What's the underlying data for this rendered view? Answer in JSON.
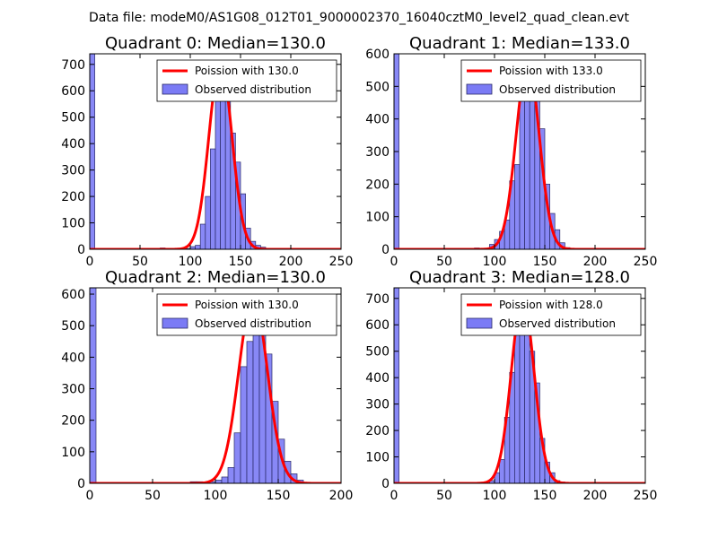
{
  "figure_title": "Data file: modeM0/AS1G08_012T01_9000002370_16040cztM0_level2_quad_clean.evt",
  "colors": {
    "bar_fill": "#7b7bf5",
    "bar_edge": "#2a2a66",
    "fit_line": "#ff0000",
    "axes": "#000000"
  },
  "chart_data": [
    {
      "type": "bar",
      "title": "Quadrant 0: Median=130.0",
      "xlim": [
        0,
        250
      ],
      "ylim": [
        0,
        740
      ],
      "xticks": [
        0,
        50,
        100,
        150,
        200,
        250
      ],
      "yticks": [
        0,
        100,
        200,
        300,
        400,
        500,
        600,
        700
      ],
      "bin_width": 5,
      "legend": [
        "Poission with 130.0",
        "Observed distribution"
      ],
      "bins": [
        0,
        5,
        10,
        15,
        20,
        25,
        30,
        35,
        40,
        45,
        50,
        55,
        60,
        65,
        70,
        75,
        80,
        85,
        90,
        95,
        100,
        105,
        110,
        115,
        120,
        125,
        130,
        135,
        140,
        145,
        150,
        155,
        160,
        165,
        170,
        175,
        180,
        185,
        190,
        195,
        200,
        205,
        210,
        215,
        220,
        225,
        230,
        235,
        240,
        245
      ],
      "counts": [
        740,
        0,
        0,
        0,
        0,
        0,
        0,
        0,
        0,
        0,
        0,
        0,
        0,
        0,
        5,
        0,
        0,
        0,
        0,
        3,
        10,
        15,
        95,
        200,
        380,
        580,
        570,
        640,
        440,
        330,
        210,
        80,
        30,
        15,
        8,
        3,
        0,
        0,
        0,
        3,
        0,
        0,
        0,
        0,
        0,
        0,
        0,
        0,
        0,
        0
      ],
      "poisson_lambda": 130.0,
      "poisson_peak": 710
    },
    {
      "type": "bar",
      "title": "Quadrant 1: Median=133.0",
      "xlim": [
        0,
        250
      ],
      "ylim": [
        0,
        600
      ],
      "xticks": [
        0,
        50,
        100,
        150,
        200,
        250
      ],
      "yticks": [
        0,
        100,
        200,
        300,
        400,
        500,
        600
      ],
      "bin_width": 5,
      "legend": [
        "Poission with 133.0",
        "Observed distribution"
      ],
      "bins": [
        0,
        5,
        10,
        15,
        20,
        25,
        30,
        35,
        40,
        45,
        50,
        55,
        60,
        65,
        70,
        75,
        80,
        85,
        90,
        95,
        100,
        105,
        110,
        115,
        120,
        125,
        130,
        135,
        140,
        145,
        150,
        155,
        160,
        165,
        170,
        175,
        180,
        185,
        190,
        195,
        200,
        205,
        210,
        215,
        220,
        225,
        230,
        235,
        240,
        245
      ],
      "counts": [
        600,
        0,
        0,
        0,
        0,
        0,
        0,
        0,
        0,
        0,
        0,
        0,
        0,
        0,
        0,
        3,
        4,
        0,
        0,
        15,
        30,
        55,
        90,
        210,
        260,
        460,
        480,
        530,
        460,
        370,
        200,
        110,
        60,
        20,
        5,
        3,
        0,
        0,
        0,
        0,
        0,
        0,
        0,
        0,
        0,
        0,
        0,
        0,
        0,
        0
      ],
      "poisson_lambda": 133.0,
      "poisson_peak": 575
    },
    {
      "type": "bar",
      "title": "Quadrant 2: Median=130.0",
      "xlim": [
        0,
        200
      ],
      "ylim": [
        0,
        620
      ],
      "xticks": [
        0,
        50,
        100,
        150,
        200
      ],
      "yticks": [
        0,
        100,
        200,
        300,
        400,
        500,
        600
      ],
      "bin_width": 5,
      "legend": [
        "Poission with 130.0",
        "Observed distribution"
      ],
      "bins": [
        0,
        5,
        10,
        15,
        20,
        25,
        30,
        35,
        40,
        45,
        50,
        55,
        60,
        65,
        70,
        75,
        80,
        85,
        90,
        95,
        100,
        105,
        110,
        115,
        120,
        125,
        130,
        135,
        140,
        145,
        150,
        155,
        160,
        165,
        170,
        175,
        180,
        185,
        190,
        195
      ],
      "counts": [
        620,
        0,
        0,
        0,
        0,
        0,
        0,
        0,
        0,
        0,
        0,
        0,
        0,
        0,
        3,
        0,
        5,
        5,
        0,
        5,
        10,
        20,
        50,
        160,
        370,
        450,
        590,
        550,
        410,
        260,
        140,
        70,
        30,
        10,
        0,
        3,
        0,
        0,
        0,
        0
      ],
      "poisson_lambda": 130.0,
      "poisson_peak": 590
    },
    {
      "type": "bar",
      "title": "Quadrant 3: Median=128.0",
      "xlim": [
        0,
        250
      ],
      "ylim": [
        0,
        740
      ],
      "xticks": [
        0,
        50,
        100,
        150,
        200,
        250
      ],
      "yticks": [
        0,
        100,
        200,
        300,
        400,
        500,
        600,
        700
      ],
      "bin_width": 5,
      "legend": [
        "Poission with 128.0",
        "Observed distribution"
      ],
      "bins": [
        0,
        5,
        10,
        15,
        20,
        25,
        30,
        35,
        40,
        45,
        50,
        55,
        60,
        65,
        70,
        75,
        80,
        85,
        90,
        95,
        100,
        105,
        110,
        115,
        120,
        125,
        130,
        135,
        140,
        145,
        150,
        155,
        160,
        165,
        170,
        175,
        180,
        185,
        190,
        195,
        200,
        205,
        210,
        215,
        220,
        225,
        230,
        235,
        240,
        245
      ],
      "counts": [
        740,
        0,
        0,
        0,
        0,
        0,
        0,
        0,
        0,
        0,
        0,
        0,
        0,
        0,
        0,
        0,
        3,
        0,
        5,
        10,
        40,
        90,
        250,
        420,
        590,
        640,
        600,
        500,
        380,
        170,
        80,
        40,
        10,
        5,
        3,
        0,
        0,
        0,
        3,
        0,
        0,
        0,
        0,
        0,
        0,
        0,
        0,
        0,
        0,
        0
      ],
      "poisson_lambda": 128.0,
      "poisson_peak": 700
    }
  ]
}
